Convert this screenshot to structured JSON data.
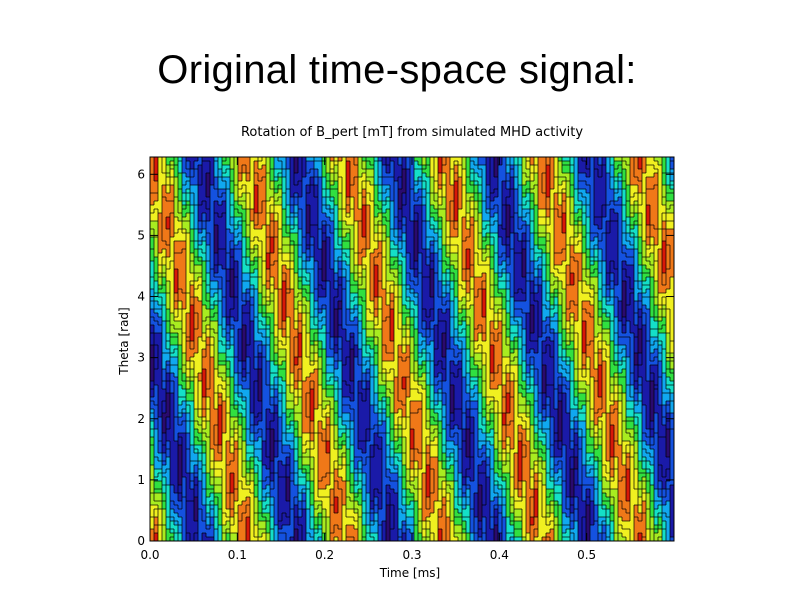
{
  "slide": {
    "title": "Original time-space signal:"
  },
  "chart_data": {
    "type": "heatmap",
    "title": "Rotation of B_pert [mT] from simulated MHD activity",
    "xlabel": "Time [ms]",
    "ylabel": "Theta [rad]",
    "xlim": [
      0.0,
      0.6
    ],
    "ylim": [
      0,
      6.283
    ],
    "x_ticks": [
      "0.0",
      "0.1",
      "0.2",
      "0.3",
      "0.4",
      "0.5"
    ],
    "y_ticks": [
      "0",
      "1",
      "2",
      "3",
      "4",
      "5",
      "6"
    ],
    "colormap": [
      "#2a0a6e",
      "#1a1aa8",
      "#1452e0",
      "#10a8f0",
      "#14e0c8",
      "#30e040",
      "#a8ec20",
      "#f0f020",
      "#f07818",
      "#d81808",
      "#f8f8f8"
    ],
    "contour_lines": "black",
    "pattern": "diagonal bands descending in theta as time increases, period ~0.11 ms"
  }
}
